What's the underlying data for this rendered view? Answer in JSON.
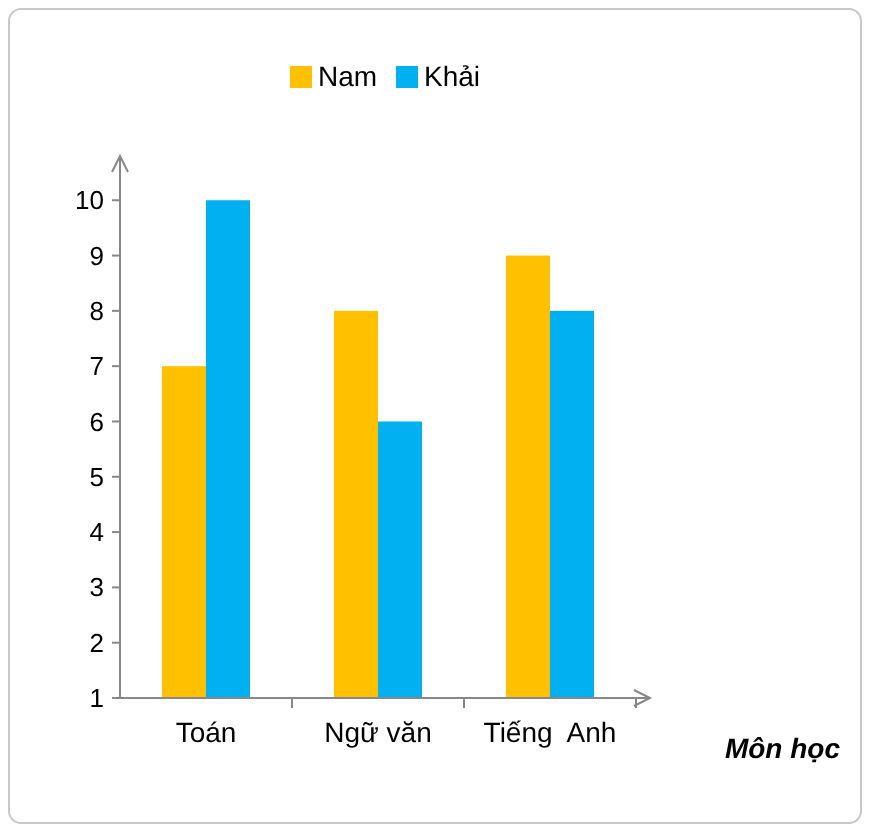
{
  "chart_data": {
    "type": "bar",
    "categories": [
      "Toán",
      "Ngữ văn",
      "Tiếng  Anh"
    ],
    "series": [
      {
        "name": "Nam",
        "color": "#ffc000",
        "values": [
          7,
          8,
          9
        ]
      },
      {
        "name": "Khải",
        "color": "#00b0f0",
        "values": [
          10,
          6,
          8
        ]
      }
    ],
    "xlabel": "Môn học",
    "ylim": [
      1,
      10.8
    ],
    "yticks": [
      1,
      2,
      3,
      4,
      5,
      6,
      7,
      8,
      9,
      10
    ],
    "grid": false,
    "legend": "top"
  }
}
